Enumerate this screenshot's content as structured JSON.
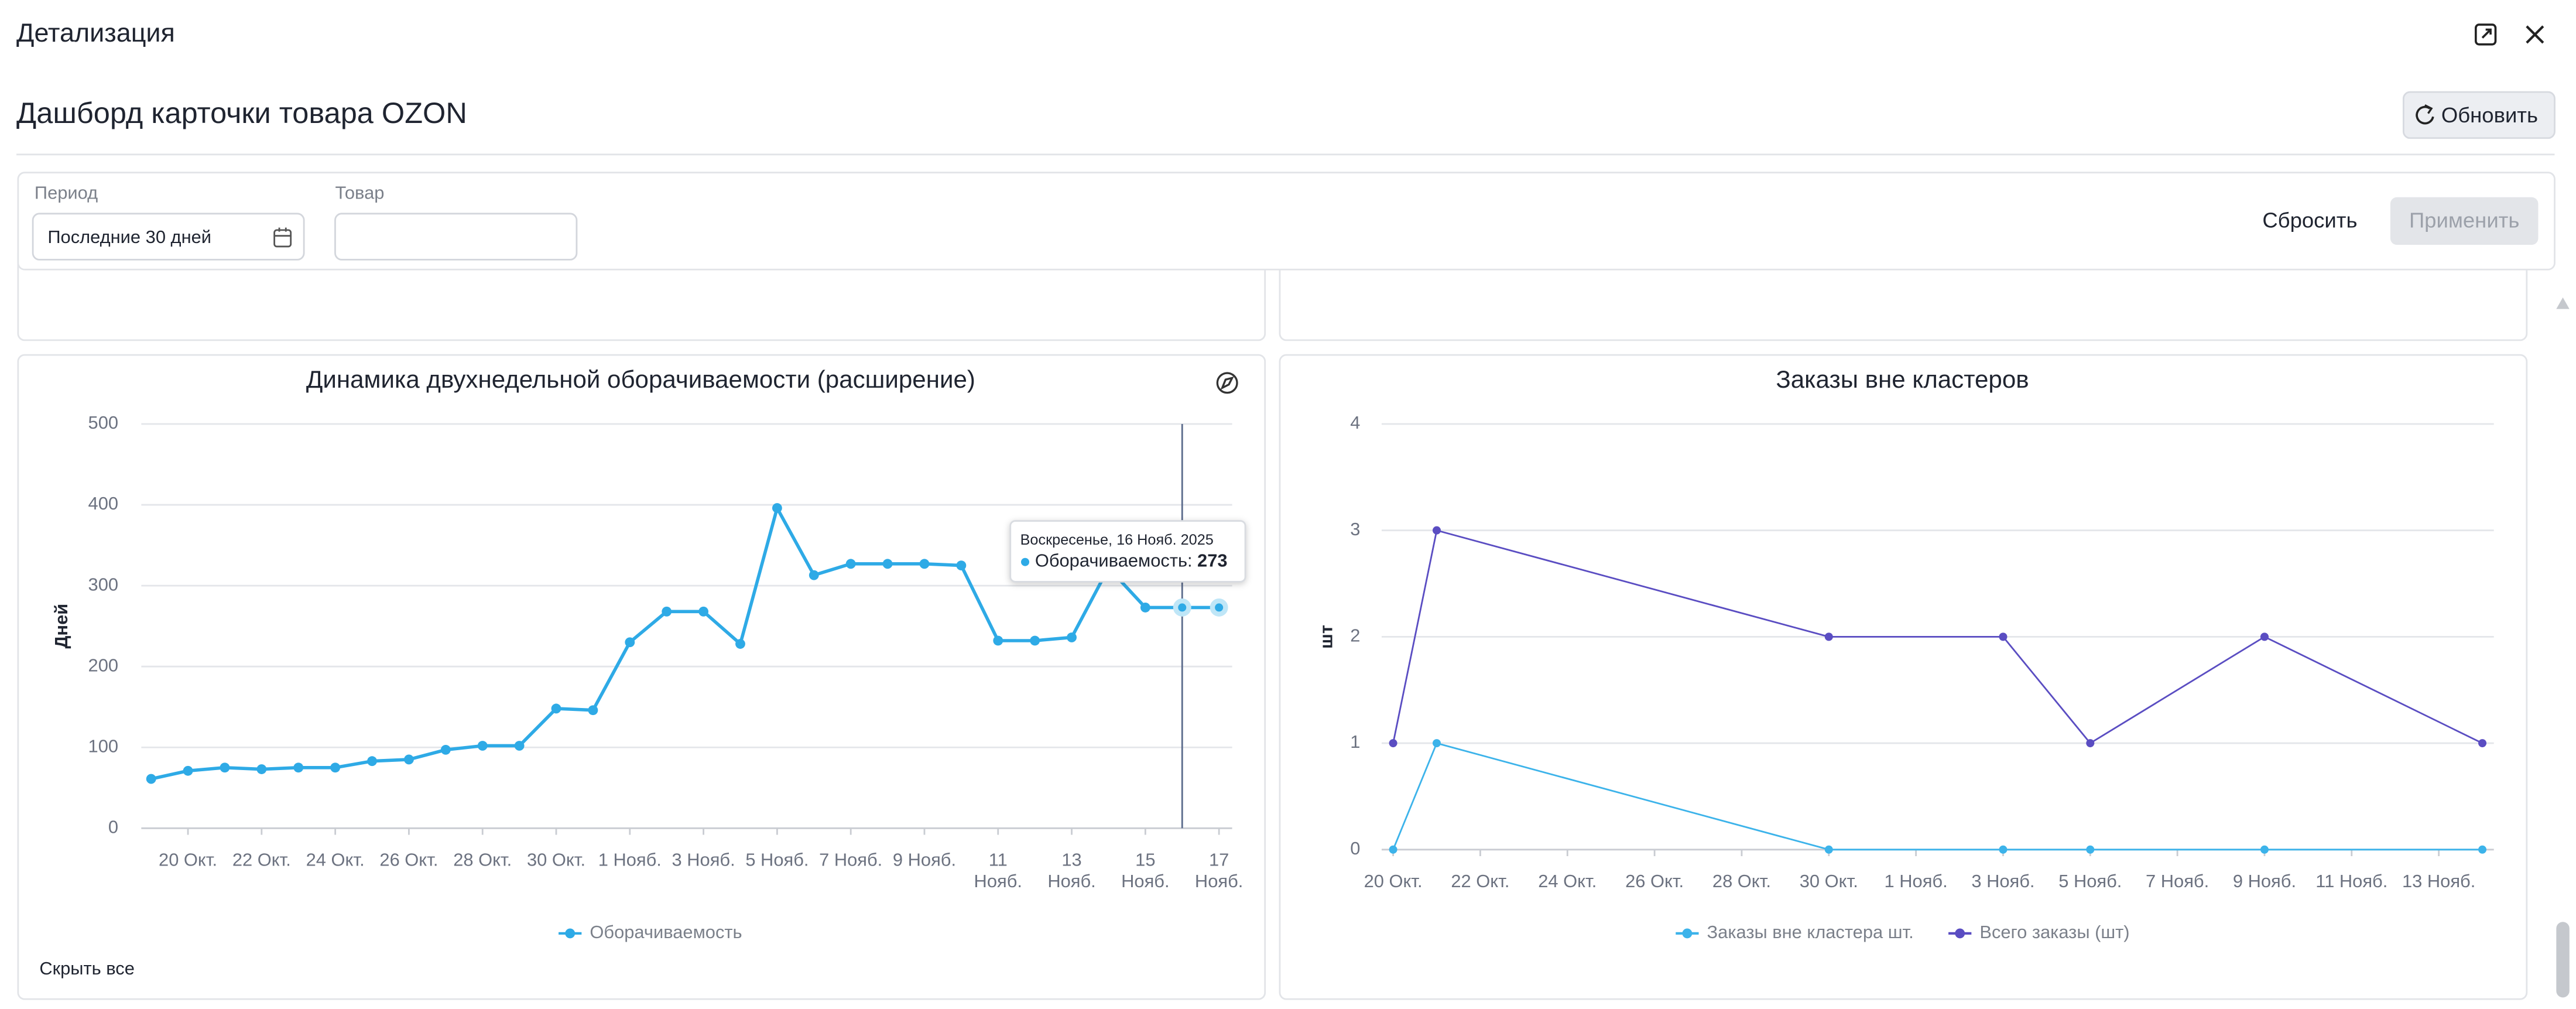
{
  "header": {
    "title": "Детализация"
  },
  "dashboard": {
    "title": "Дашборд карточки товара OZON",
    "refresh_button": "Обновить"
  },
  "filters": {
    "period_label": "Период",
    "period_value": "Последние 30 дней",
    "product_label": "Товар",
    "reset_button": "Сбросить",
    "apply_button": "Применить"
  },
  "hide_all": "Скрыть все",
  "chart_data": [
    {
      "type": "line",
      "title": "Динамика двухнедельной оборачиваемости (расширение)",
      "y_label": "Дней",
      "categories": [
        null,
        "20 Окт.",
        null,
        "22 Окт.",
        null,
        "24 Окт.",
        null,
        "26 Окт.",
        null,
        "28 Окт.",
        null,
        "30 Окт.",
        null,
        "1 Нояб.",
        null,
        "3 Нояб.",
        null,
        "5 Нояб.",
        null,
        "7 Нояб.",
        null,
        "9 Нояб.",
        null,
        "11 Нояб.",
        null,
        "13 Нояб.",
        null,
        "15 Нояб.",
        null,
        "17 Нояб."
      ],
      "series": [
        {
          "name": "Оборачиваемость",
          "color": "#2eaae6",
          "values": [
            61,
            71,
            75,
            73,
            75,
            75,
            83,
            85,
            97,
            102,
            102,
            148,
            146,
            230,
            268,
            268,
            228,
            396,
            313,
            327,
            327,
            327,
            325,
            232,
            232,
            236,
            322,
            273,
            273,
            273
          ]
        }
      ],
      "ylim": [
        0,
        500
      ],
      "yticks": [
        0,
        100,
        200,
        300,
        400,
        500
      ],
      "grid": true,
      "legend": "bottom",
      "tooltip": {
        "title": "Воскресенье, 16 Нояб. 2025",
        "series_label": "Оборачиваемость:",
        "value": 273
      }
    },
    {
      "type": "line",
      "title": "Заказы вне кластеров",
      "y_label": "шт",
      "categories": [
        "20 Окт.",
        null,
        "22 Окт.",
        null,
        "24 Окт.",
        null,
        "26 Окт.",
        null,
        "28 Окт.",
        null,
        "30 Окт.",
        null,
        "1 Нояб.",
        null,
        "3 Нояб.",
        null,
        "5 Нояб.",
        null,
        "7 Нояб.",
        null,
        "9 Нояб.",
        null,
        "11 Нояб.",
        null,
        "13 Нояб.",
        null
      ],
      "series": [
        {
          "name": "Заказы вне кластера шт.",
          "color": "#3cb3ea",
          "values": [
            0,
            1,
            null,
            null,
            null,
            null,
            null,
            null,
            null,
            null,
            0,
            null,
            null,
            null,
            0,
            null,
            0,
            null,
            null,
            null,
            0,
            null,
            null,
            null,
            null,
            0
          ]
        },
        {
          "name": "Всего заказы (шт)",
          "color": "#5a4dc2",
          "values": [
            1,
            3,
            null,
            null,
            null,
            null,
            null,
            null,
            null,
            null,
            2,
            null,
            null,
            null,
            2,
            null,
            1,
            null,
            null,
            null,
            2,
            null,
            null,
            null,
            null,
            1
          ]
        }
      ],
      "ylim": [
        0,
        4
      ],
      "yticks": [
        0,
        1,
        2,
        3,
        4
      ],
      "grid": true,
      "legend": "bottom",
      "connect_nulls": true
    }
  ]
}
